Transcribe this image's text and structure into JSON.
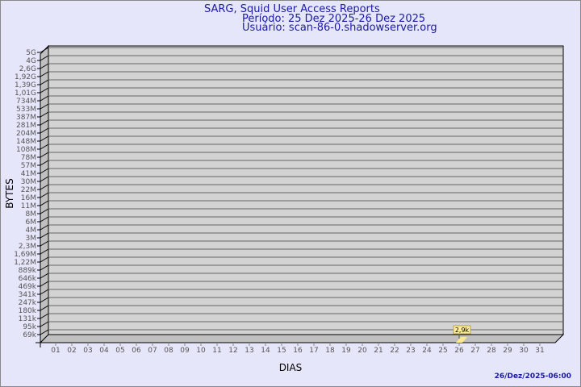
{
  "header": {
    "title": "SARG, Squid User Access Reports",
    "period": "Período: 25 Dez 2025-26 Dez 2025",
    "user": "Usuário: scan-86-0.shadowserver.org"
  },
  "timestamp": "26/Dez/2025-06:00",
  "chart_data": {
    "type": "bar",
    "xlabel": "DIAS",
    "ylabel": "BYTES",
    "y_scale": "log",
    "grid": true,
    "y_tick_labels": [
      "5G",
      "4G",
      "2,6G",
      "1,92G",
      "1,39G",
      "1,01G",
      "734M",
      "533M",
      "387M",
      "281M",
      "204M",
      "148M",
      "108M",
      "78M",
      "57M",
      "41M",
      "30M",
      "22M",
      "16M",
      "11M",
      "8M",
      "6M",
      "4M",
      "3M",
      "2,3M",
      "1,69M",
      "1,22M",
      "889k",
      "646k",
      "469k",
      "341k",
      "247k",
      "180k",
      "131k",
      "95k",
      "69k"
    ],
    "categories": [
      "01",
      "02",
      "03",
      "04",
      "05",
      "06",
      "07",
      "08",
      "09",
      "10",
      "11",
      "12",
      "13",
      "14",
      "15",
      "16",
      "17",
      "18",
      "19",
      "20",
      "21",
      "22",
      "23",
      "24",
      "25",
      "26",
      "27",
      "28",
      "29",
      "30",
      "31"
    ],
    "points": [
      {
        "x": "26",
        "value": 2900,
        "label": "2,9k"
      }
    ],
    "colors": {
      "wall": "#d3d3d3",
      "side": "#c0c0c0",
      "bar": "#ffe98c",
      "label_bg": "#ffef9a",
      "text": "#555555",
      "title": "#1a1aa6"
    }
  }
}
